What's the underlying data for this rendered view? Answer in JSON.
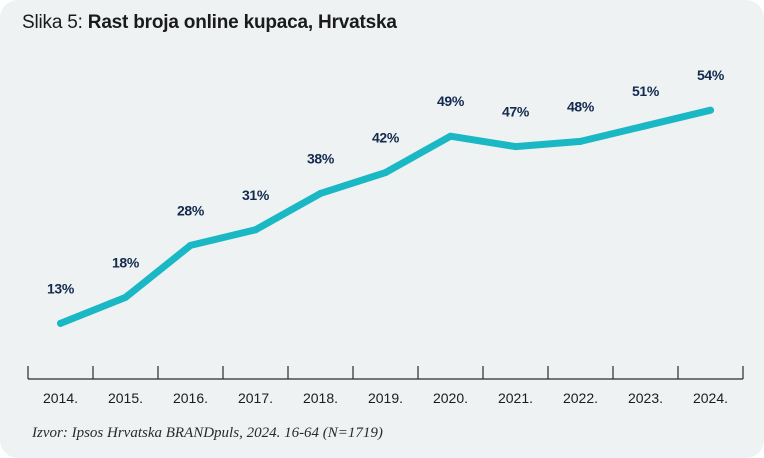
{
  "title": {
    "prefix": "Slika 5: ",
    "main": "Rast broja online kupaca, Hrvatska"
  },
  "source": "Izvor: Ipsos Hrvatska BRANDpuls, 2024. 16-64 (N=1719)",
  "chart_data": {
    "type": "line",
    "title": "Rast broja online kupaca, Hrvatska",
    "categories": [
      "2014.",
      "2015.",
      "2016.",
      "2017.",
      "2018.",
      "2019.",
      "2020.",
      "2021.",
      "2022.",
      "2023.",
      "2024."
    ],
    "series": [
      {
        "values": [
          13,
          18,
          28,
          31,
          38,
          42,
          49,
          47,
          48,
          51,
          54
        ],
        "labels": [
          "13%",
          "18%",
          "28%",
          "31%",
          "38%",
          "42%",
          "49%",
          "47%",
          "48%",
          "51%",
          "54%"
        ],
        "color": "#1ab8c4"
      }
    ],
    "xlabel": "",
    "ylabel": "",
    "grid": false,
    "label_color": "#132a4e"
  }
}
